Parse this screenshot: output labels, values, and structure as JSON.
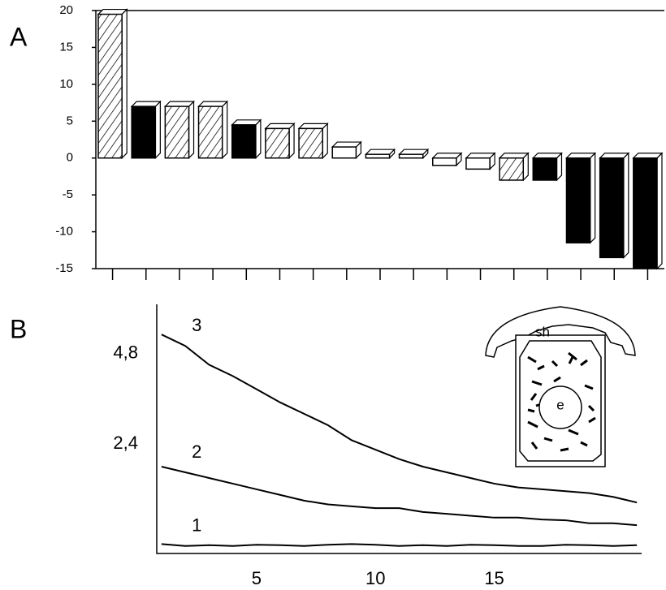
{
  "chart_data": [
    {
      "type": "bar3d",
      "panel_label": "A",
      "categories": [
        null,
        null,
        null,
        null,
        null,
        null,
        null,
        null,
        null,
        null,
        null,
        null,
        null,
        null,
        null,
        null,
        null
      ],
      "values": [
        19.5,
        7,
        7,
        7,
        4.5,
        4,
        4,
        1.5,
        0.5,
        0.5,
        -1,
        -1.5,
        -3,
        -3,
        -11.5,
        -13.5,
        -15
      ],
      "fills": [
        "hatched",
        "solid",
        "hatched",
        "hatched",
        "solid",
        "hatched",
        "hatched",
        "open",
        "open",
        "open",
        "open",
        "open",
        "hatched",
        "solid",
        "solid",
        "solid",
        "solid"
      ],
      "ylim": [
        -15,
        20
      ],
      "yticks": [
        -15,
        -10,
        -5,
        0,
        5,
        10,
        15,
        20
      ],
      "color": "#000000"
    },
    {
      "type": "line",
      "panel_label": "B",
      "x": [
        1,
        2,
        3,
        4,
        5,
        6,
        7,
        8,
        9,
        10,
        11,
        12,
        13,
        14,
        15,
        16,
        17,
        18,
        19,
        20,
        21
      ],
      "series": [
        {
          "name": "1",
          "color": "#000000",
          "values": [
            -0.25,
            -0.3,
            -0.28,
            -0.3,
            -0.27,
            -0.28,
            -0.3,
            -0.27,
            -0.25,
            -0.27,
            -0.3,
            -0.28,
            -0.3,
            -0.27,
            -0.28,
            -0.3,
            -0.3,
            -0.27,
            -0.28,
            -0.3,
            -0.28
          ]
        },
        {
          "name": "2",
          "color": "#000000",
          "values": [
            1.8,
            1.65,
            1.5,
            1.35,
            1.2,
            1.05,
            0.9,
            0.8,
            0.75,
            0.7,
            0.7,
            0.6,
            0.55,
            0.5,
            0.45,
            0.45,
            0.4,
            0.38,
            0.3,
            0.3,
            0.25
          ]
        },
        {
          "name": "3",
          "color": "#000000",
          "values": [
            5.3,
            5.0,
            4.5,
            4.2,
            3.85,
            3.5,
            3.2,
            2.9,
            2.5,
            2.25,
            2.0,
            1.8,
            1.65,
            1.5,
            1.35,
            1.25,
            1.2,
            1.15,
            1.1,
            1.0,
            0.85
          ]
        }
      ],
      "xlim": [
        0.8,
        21.2
      ],
      "xticks": [
        5,
        10,
        15
      ],
      "ylim": [
        -0.5,
        6.1
      ],
      "yticks": [
        {
          "value": 2.4,
          "label": "2,4"
        },
        {
          "value": 4.8,
          "label": "4,8"
        }
      ],
      "annotations": [
        "sh",
        "e"
      ]
    }
  ]
}
